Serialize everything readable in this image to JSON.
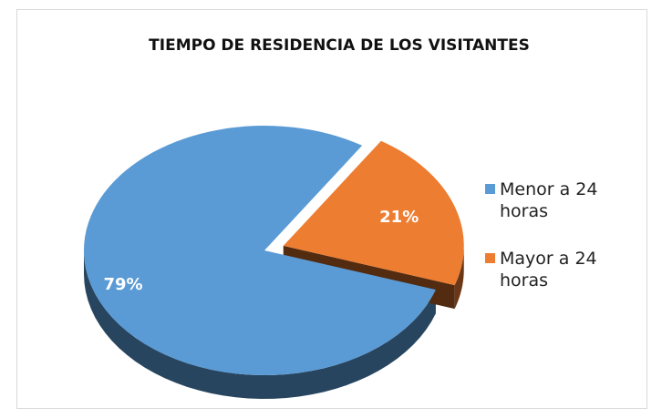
{
  "chart_data": {
    "type": "pie",
    "title": "TIEMPO DE RESIDENCIA DE LOS VISITANTES",
    "categories": [
      "Menor a 24 horas",
      "Mayor a 24 horas"
    ],
    "values": [
      79,
      21
    ],
    "value_labels": [
      "79%",
      "21%"
    ],
    "colors": [
      "#5b9bd5",
      "#ed7d31"
    ],
    "legend": "right"
  }
}
